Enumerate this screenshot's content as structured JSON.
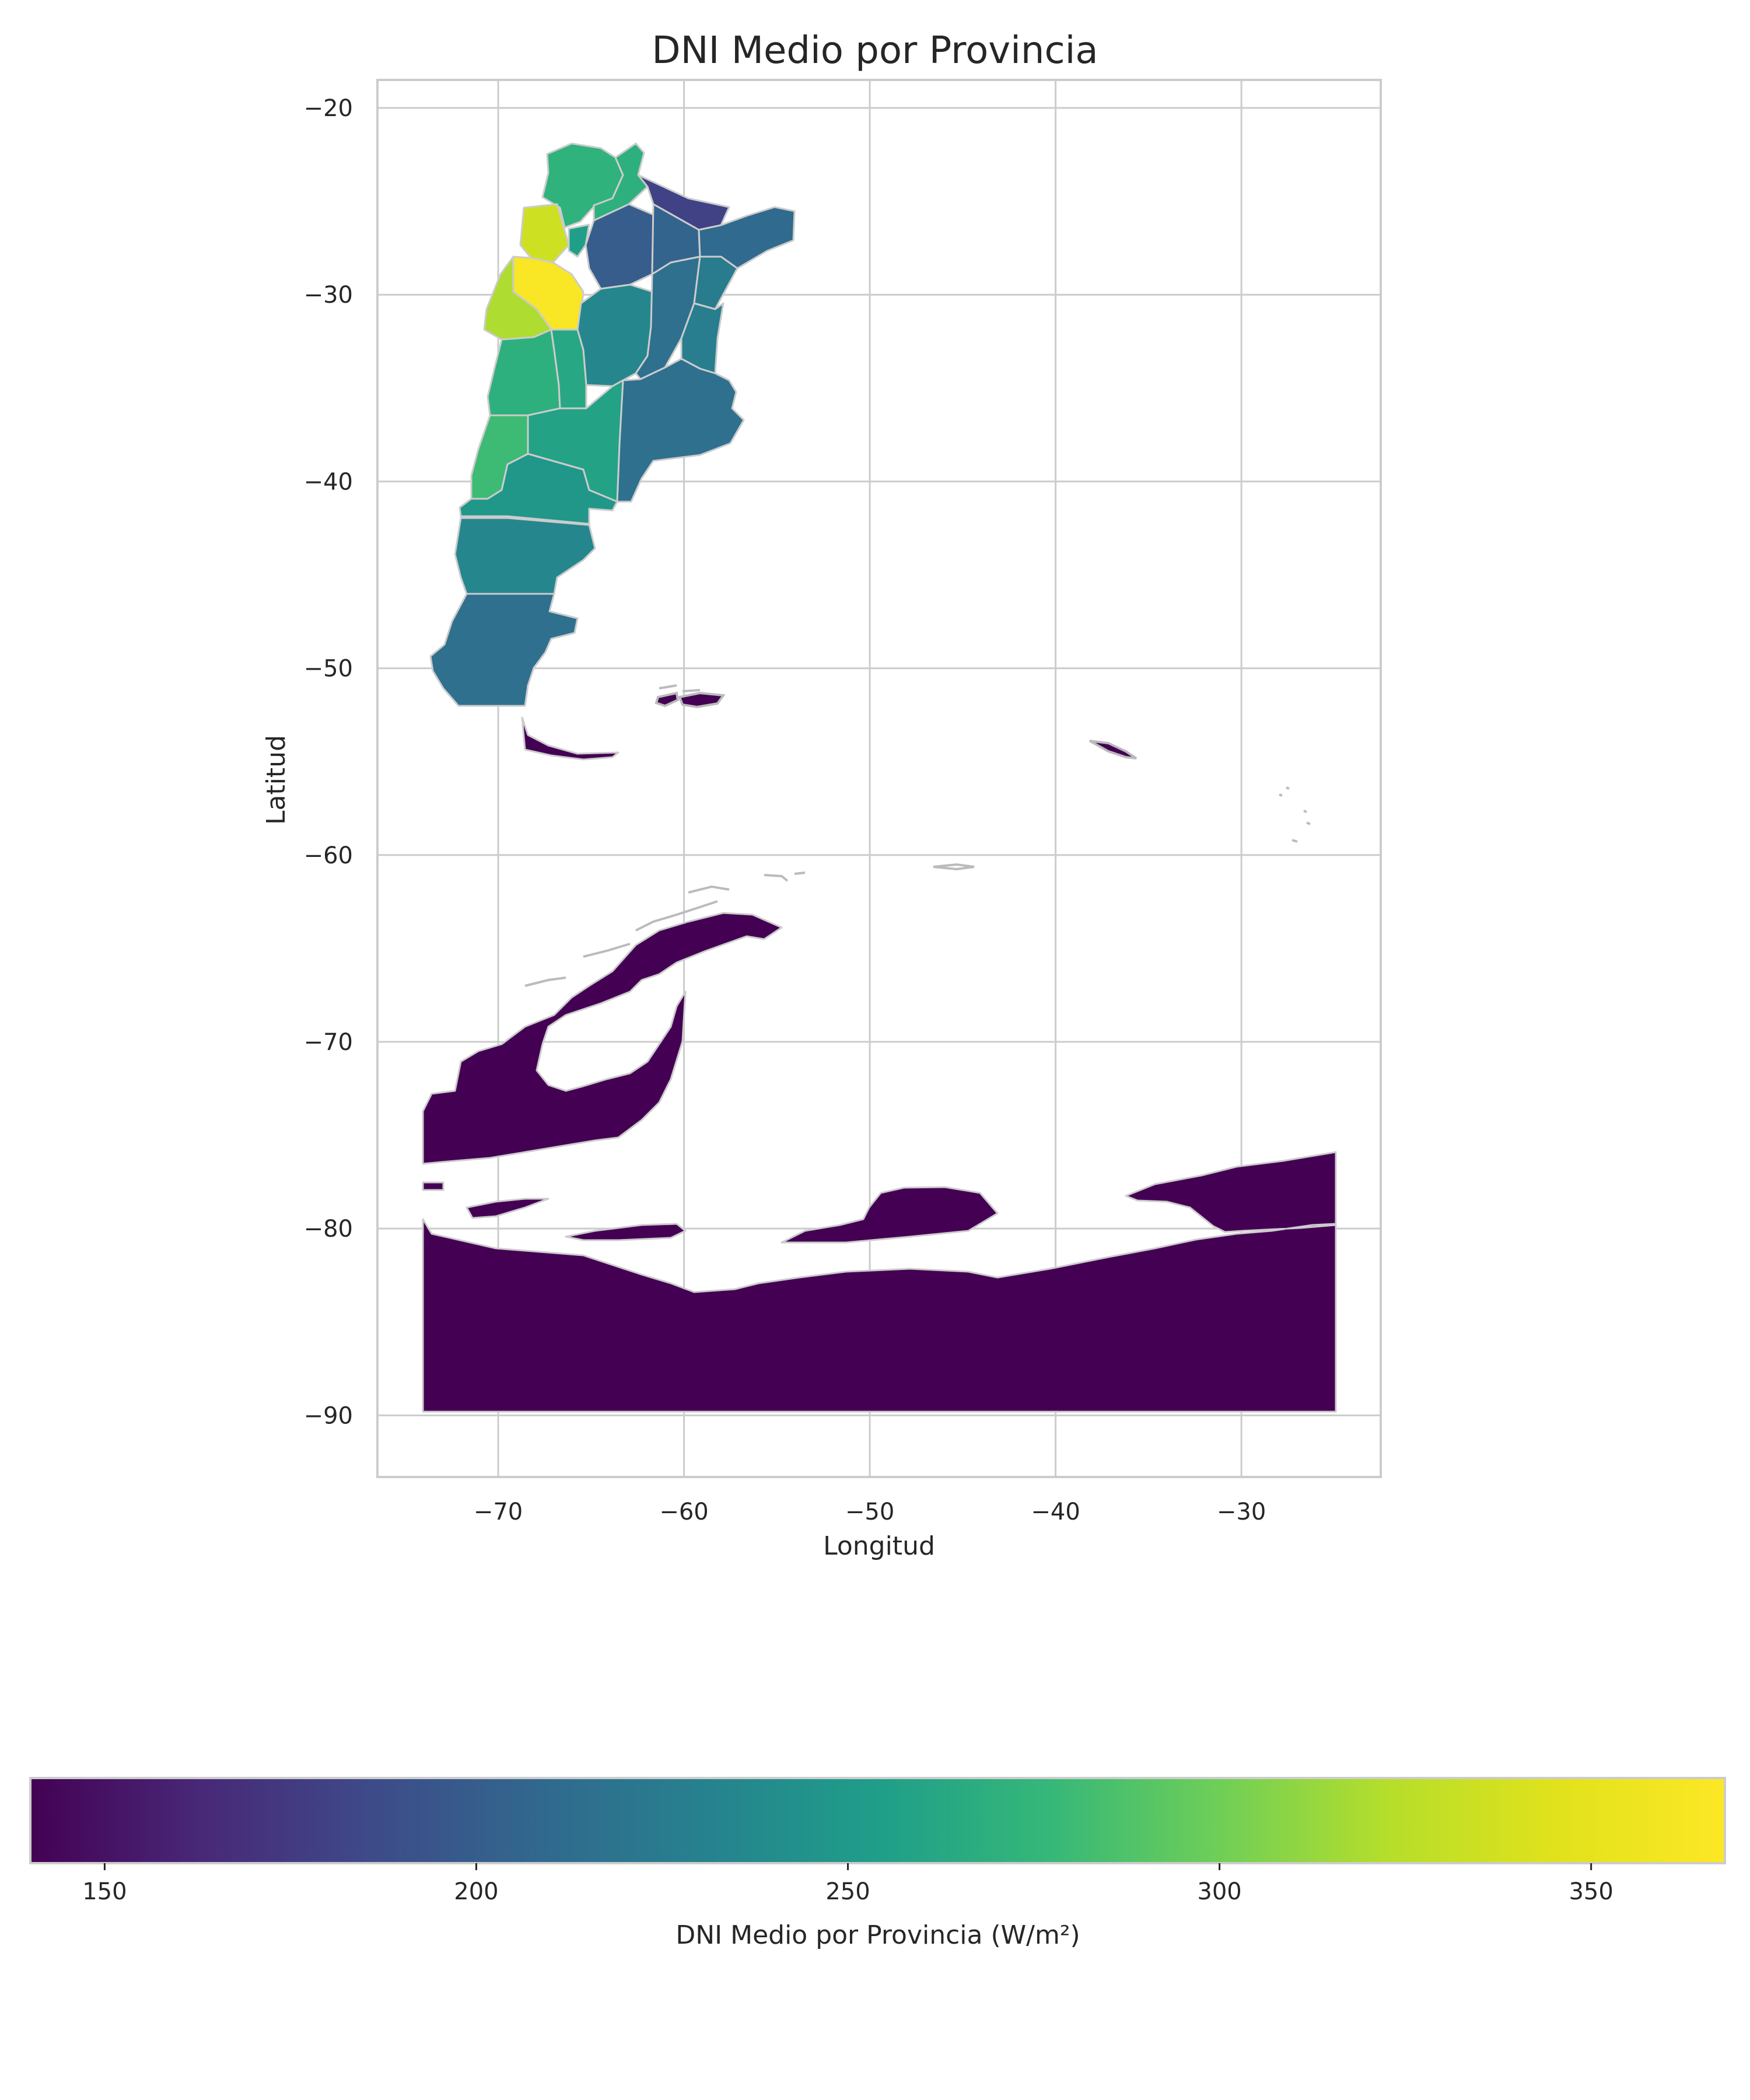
{
  "title": "DNI Medio por Provincia",
  "xlabel": "Longitud",
  "ylabel": "Latitud",
  "x_ticks": [
    "−70",
    "−60",
    "−50",
    "−40",
    "−30"
  ],
  "y_ticks": [
    "−20",
    "−30",
    "−40",
    "−50",
    "−60",
    "−70",
    "−80",
    "−90"
  ],
  "colorbar": {
    "label": "DNI Medio por Provincia (W/m²)",
    "colormap": "viridis",
    "ticks": [
      "150",
      "200",
      "250",
      "300",
      "350"
    ]
  },
  "chart_data": {
    "type": "choropleth",
    "title": "DNI Medio por Provincia",
    "xlabel": "Longitud",
    "ylabel": "Latitud",
    "xlim": [
      -76.5,
      -22.5
    ],
    "ylim": [
      -93.3,
      -18.5
    ],
    "value_range": [
      140,
      368
    ],
    "grid": true,
    "regions_note": "regions are unlabeled on the map; values estimated from the colorbar",
    "region_values": [
      {
        "lon": -66.2,
        "lat": -23.5,
        "value": 272
      },
      {
        "lon": -64.8,
        "lat": -25.0,
        "value": 270
      },
      {
        "lon": -60.5,
        "lat": -25.0,
        "value": 180
      },
      {
        "lon": -67.2,
        "lat": -27.5,
        "value": 335
      },
      {
        "lon": -65.3,
        "lat": -27.0,
        "value": 255
      },
      {
        "lon": -62.3,
        "lat": -27.8,
        "value": 200
      },
      {
        "lon": -59.8,
        "lat": -26.5,
        "value": 205
      },
      {
        "lon": -55.0,
        "lat": -27.0,
        "value": 210
      },
      {
        "lon": -66.8,
        "lat": -29.0,
        "value": 365
      },
      {
        "lon": -69.0,
        "lat": -30.5,
        "value": 320
      },
      {
        "lon": -63.8,
        "lat": -32.0,
        "value": 235
      },
      {
        "lon": -59.3,
        "lat": -29.0,
        "value": 215
      },
      {
        "lon": -58.3,
        "lat": -31.8,
        "value": 225
      },
      {
        "lon": -60.5,
        "lat": -32.0,
        "value": 228
      },
      {
        "lon": -68.8,
        "lat": -34.0,
        "value": 270
      },
      {
        "lon": -66.5,
        "lat": -34.0,
        "value": 262
      },
      {
        "lon": -60.0,
        "lat": -36.5,
        "value": 215
      },
      {
        "lon": -65.0,
        "lat": -37.5,
        "value": 258
      },
      {
        "lon": -70.0,
        "lat": -38.5,
        "value": 280
      },
      {
        "lon": -67.0,
        "lat": -40.0,
        "value": 248
      },
      {
        "lon": -69.5,
        "lat": -44.0,
        "value": 235
      },
      {
        "lon": -70.0,
        "lat": -48.5,
        "value": 215
      },
      {
        "lon": -67.5,
        "lat": -54.3,
        "value": 140
      },
      {
        "lon": -50.0,
        "lat": -78.0,
        "value": 140
      }
    ]
  }
}
